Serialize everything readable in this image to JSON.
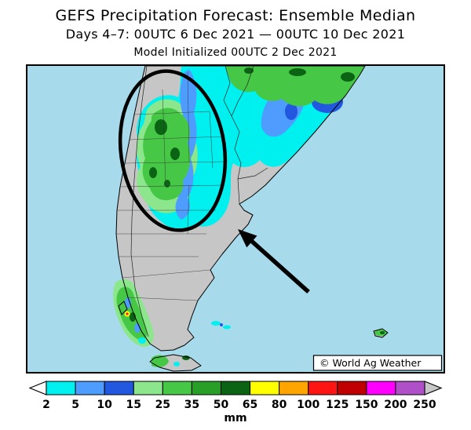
{
  "header": {
    "title": "GEFS Precipitation Forecast: Ensemble Median",
    "subtitle": "Days 4–7: 00UTC 6 Dec 2021 — 00UTC 10 Dec 2021",
    "init": "Model Initialized 00UTC 2 Dec 2021"
  },
  "map": {
    "watermark": "© World Ag Weather",
    "ocean_color": "#a7daeb",
    "land_color": "#c6c6c6"
  },
  "legend": {
    "unit": "mm",
    "ticks": [
      "2",
      "5",
      "10",
      "15",
      "25",
      "35",
      "50",
      "65",
      "80",
      "100",
      "125",
      "150",
      "200",
      "250"
    ],
    "colors": [
      "#00f0f0",
      "#4f9cff",
      "#2257e0",
      "#8ce68c",
      "#46c846",
      "#28a028",
      "#0a6414",
      "#ffff00",
      "#ffa500",
      "#ff1414",
      "#c00000",
      "#ff00ff",
      "#b050c8"
    ],
    "end_left": "#ffffff",
    "end_right": "#c8c8c8"
  }
}
